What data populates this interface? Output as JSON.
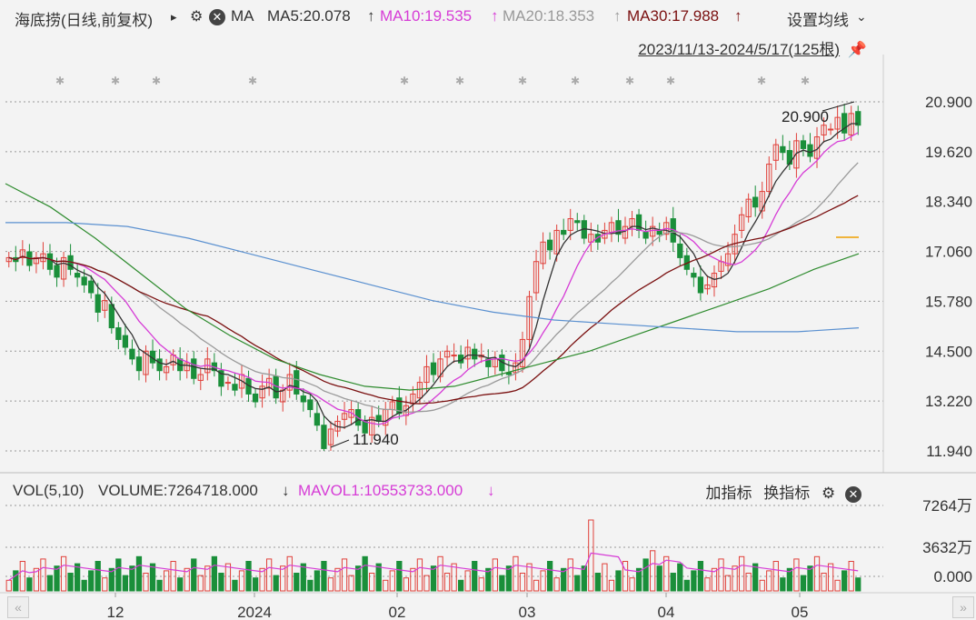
{
  "header": {
    "stock": "海底捞(日线,前复权)",
    "play_arrow": "▸",
    "ma_label": "MA",
    "ma5": "MA5:20.078",
    "ma10": "MA10:19.535",
    "ma20": "MA20:18.353",
    "ma30": "MA30:17.988",
    "up_arrow": "↑",
    "settings": "设置均线",
    "settings_chevron": "⌄"
  },
  "range": {
    "text": "2023/11/13-2024/5/17(125根)"
  },
  "price_axis": [
    "20.900",
    "19.620",
    "18.340",
    "17.060",
    "15.780",
    "14.500",
    "13.220",
    "11.940"
  ],
  "annotations": {
    "high": "20.900",
    "low": "11.940"
  },
  "volume": {
    "vol_label": "VOL(5,10)",
    "volume": "VOLUME:7264718.000",
    "mavol": "MAVOL1:10553733.000",
    "down_arrow": "↓",
    "axis": [
      "7264万",
      "3632万",
      "0.000"
    ],
    "add_indicator": "加指标",
    "switch_indicator": "换指标"
  },
  "x_axis": [
    "12",
    "2024",
    "02",
    "03",
    "04",
    "05"
  ],
  "nav": {
    "left": "«",
    "right": "»"
  },
  "colors": {
    "up": "#e0403a",
    "down": "#1a8f3a",
    "ma5": "#333333",
    "ma10": "#d63cd6",
    "ma20": "#9a9a9a",
    "ma30": "#7a1010",
    "ma60": "#2e8b2e",
    "ma120": "#5a90d0",
    "orange": "#f0a000"
  },
  "chart_data": {
    "type": "candlestick",
    "period": "2023/11/13-2024/5/17",
    "ylim": [
      11.94,
      20.9
    ],
    "closes": [
      16.9,
      16.8,
      17.1,
      16.7,
      16.9,
      17.0,
      16.6,
      16.4,
      16.9,
      16.6,
      16.4,
      16.2,
      16.0,
      15.5,
      15.8,
      15.1,
      14.8,
      14.6,
      14.3,
      14.0,
      14.5,
      14.2,
      14.0,
      14.1,
      14.4,
      14.0,
      14.2,
      13.8,
      13.9,
      14.3,
      14.0,
      13.6,
      13.7,
      13.5,
      13.9,
      13.4,
      13.2,
      13.6,
      13.8,
      13.3,
      13.5,
      13.9,
      13.4,
      13.2,
      13.0,
      12.6,
      12.0,
      12.5,
      12.7,
      12.9,
      13.0,
      12.6,
      12.4,
      12.8,
      12.7,
      13.0,
      13.2,
      12.9,
      13.1,
      13.4,
      13.7,
      14.1,
      13.9,
      14.3,
      14.5,
      14.4,
      14.2,
      14.6,
      14.3,
      14.4,
      14.1,
      14.3,
      14.0,
      13.9,
      14.2,
      14.8,
      15.9,
      16.8,
      17.3,
      17.1,
      17.6,
      17.5,
      17.9,
      17.8,
      17.4,
      17.5,
      17.3,
      17.6,
      17.8,
      17.5,
      17.7,
      17.9,
      17.6,
      17.4,
      17.7,
      17.5,
      17.8,
      17.3,
      16.9,
      16.6,
      16.4,
      16.0,
      16.2,
      16.5,
      16.8,
      17.0,
      17.5,
      18.0,
      18.4,
      18.2,
      18.6,
      19.3,
      19.8,
      19.6,
      19.3,
      19.9,
      19.7,
      19.5,
      20.0,
      20.3,
      20.2,
      20.5,
      20.1,
      20.6,
      20.3
    ],
    "ma_values": {
      "MA5": 20.078,
      "MA10": 19.535,
      "MA20": 18.353,
      "MA30": 17.988
    },
    "volume_latest": 7264718.0,
    "mavol1_latest": 10553733.0,
    "high": 20.9,
    "low": 11.94
  }
}
